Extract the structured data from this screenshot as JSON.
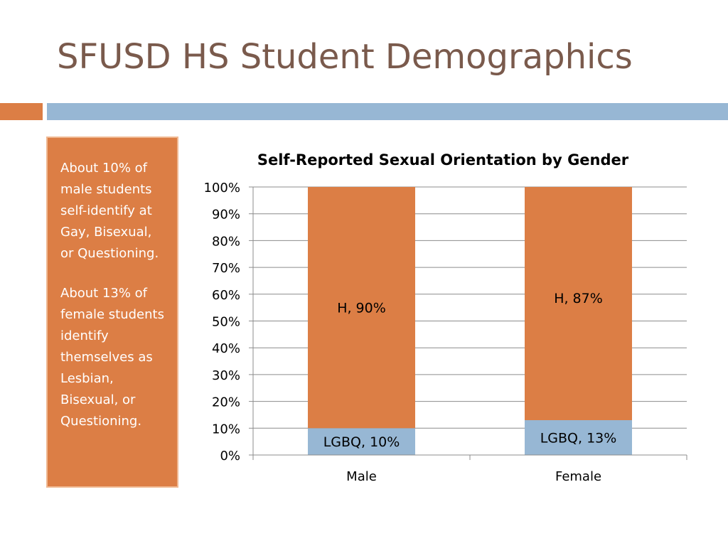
{
  "slide": {
    "title": "SFUSD HS Student Demographics",
    "accent_orange": "#dc7e45",
    "accent_blue": "#97b7d4"
  },
  "callout": {
    "paragraphs": [
      "About 10% of male students self-identify at Gay, Bisexual, or Questioning.",
      "About 13% of female students identify themselves as Lesbian, Bisexual, or Questioning."
    ]
  },
  "chart_data": {
    "type": "bar",
    "stacked": true,
    "title": "Self-Reported Sexual Orientation by Gender",
    "categories": [
      "Male",
      "Female"
    ],
    "series": [
      {
        "color": "#97b7d4",
        "values": [
          10,
          13
        ],
        "labels": [
          "LGBQ, 10%",
          "LGBQ, 13%"
        ]
      },
      {
        "color": "#dc7e45",
        "values": [
          90,
          87
        ],
        "labels": [
          "H, 90%",
          "H, 87%"
        ]
      }
    ],
    "ylim": [
      0,
      100
    ],
    "yticks": [
      "0%",
      "10%",
      "20%",
      "30%",
      "40%",
      "50%",
      "60%",
      "70%",
      "80%",
      "90%",
      "100%"
    ],
    "grid": true,
    "legend": "none"
  }
}
